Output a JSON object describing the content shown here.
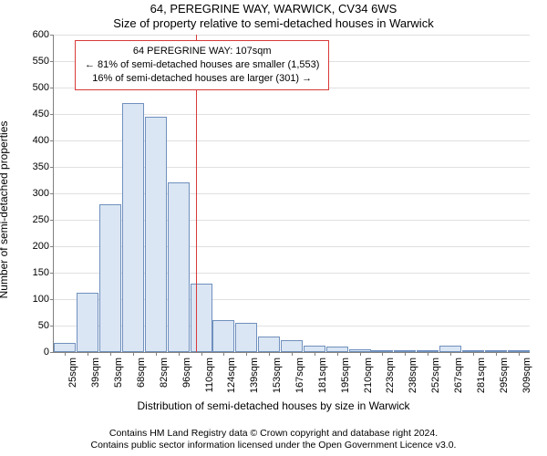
{
  "title_main": "64, PEREGRINE WAY, WARWICK, CV34 6WS",
  "title_sub": "Size of property relative to semi-detached houses in Warwick",
  "ylabel": "Number of semi-detached properties",
  "xlabel": "Distribution of semi-detached houses by size in Warwick",
  "copyright_line1": "Contains HM Land Registry data © Crown copyright and database right 2024.",
  "copyright_line2": "Contains public sector information licensed under the Open Government Licence v3.0.",
  "chart": {
    "type": "histogram",
    "background_color": "#ffffff",
    "grid_color": "#e0e0e0",
    "axis_color": "#808080",
    "bar_fill": "#dbe6f4",
    "bar_border": "#6f90bd",
    "marker_color": "#d83a3a",
    "marker_value_sqm": 107,
    "ylim": [
      0,
      600
    ],
    "ytick_step": 50,
    "x_start": 25,
    "x_step": 14.23,
    "x_count": 21,
    "x_unit": "sqm",
    "categories": [
      "25sqm",
      "39sqm",
      "53sqm",
      "68sqm",
      "82sqm",
      "96sqm",
      "110sqm",
      "124sqm",
      "139sqm",
      "153sqm",
      "167sqm",
      "181sqm",
      "195sqm",
      "210sqm",
      "223sqm",
      "238sqm",
      "252sqm",
      "267sqm",
      "281sqm",
      "295sqm",
      "309sqm"
    ],
    "values": [
      18,
      112,
      280,
      470,
      445,
      320,
      130,
      60,
      55,
      30,
      22,
      12,
      10,
      6,
      4,
      3,
      2,
      12,
      2,
      1,
      1
    ],
    "bar_width_ratio": 0.97,
    "title_fontsize": 13,
    "label_fontsize": 12,
    "tick_fontsize": 11
  },
  "callout": {
    "border_color": "#d83a3a",
    "line1": "64 PEREGRINE WAY: 107sqm",
    "line2": "← 81% of semi-detached houses are smaller (1,553)",
    "line3": "16% of semi-detached houses are larger (301) →"
  }
}
